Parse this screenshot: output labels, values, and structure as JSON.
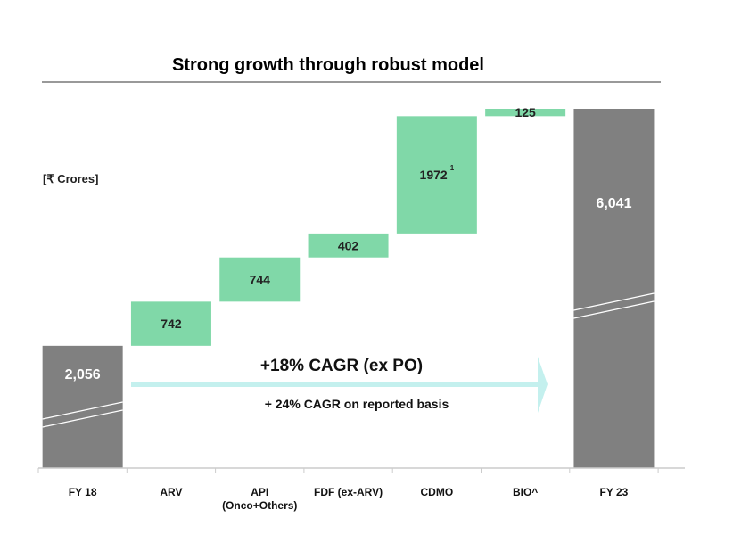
{
  "chart_data": {
    "type": "waterfall",
    "title": "Strong growth through robust model",
    "unit_label": "[₹ Crores]",
    "categories": [
      "FY 18",
      "ARV",
      "API",
      "FDF (ex-ARV)",
      "CDMO",
      "BIO^",
      "FY 23"
    ],
    "category_sublabels": [
      "",
      "",
      "(Onco+Others)",
      "",
      "",
      "",
      ""
    ],
    "values": [
      2056,
      742,
      744,
      402,
      1972,
      125,
      6041
    ],
    "kinds": [
      "total",
      "delta",
      "delta",
      "delta",
      "delta",
      "delta",
      "total"
    ],
    "value_labels": [
      "2,056",
      "742",
      "744",
      "402",
      "1972",
      "125",
      "6,041"
    ],
    "footnote_marks": [
      "",
      "",
      "",
      "",
      "1",
      "",
      ""
    ],
    "ylim": [
      0,
      6041
    ],
    "axis_break": true,
    "annotation_main": "+18% CAGR (ex PO)",
    "annotation_sub": "+ 24% CAGR on reported basis",
    "colors": {
      "total": "#808080",
      "delta": "#80d8a8",
      "arrow": "#c4f0ee",
      "text": "#222222"
    }
  }
}
